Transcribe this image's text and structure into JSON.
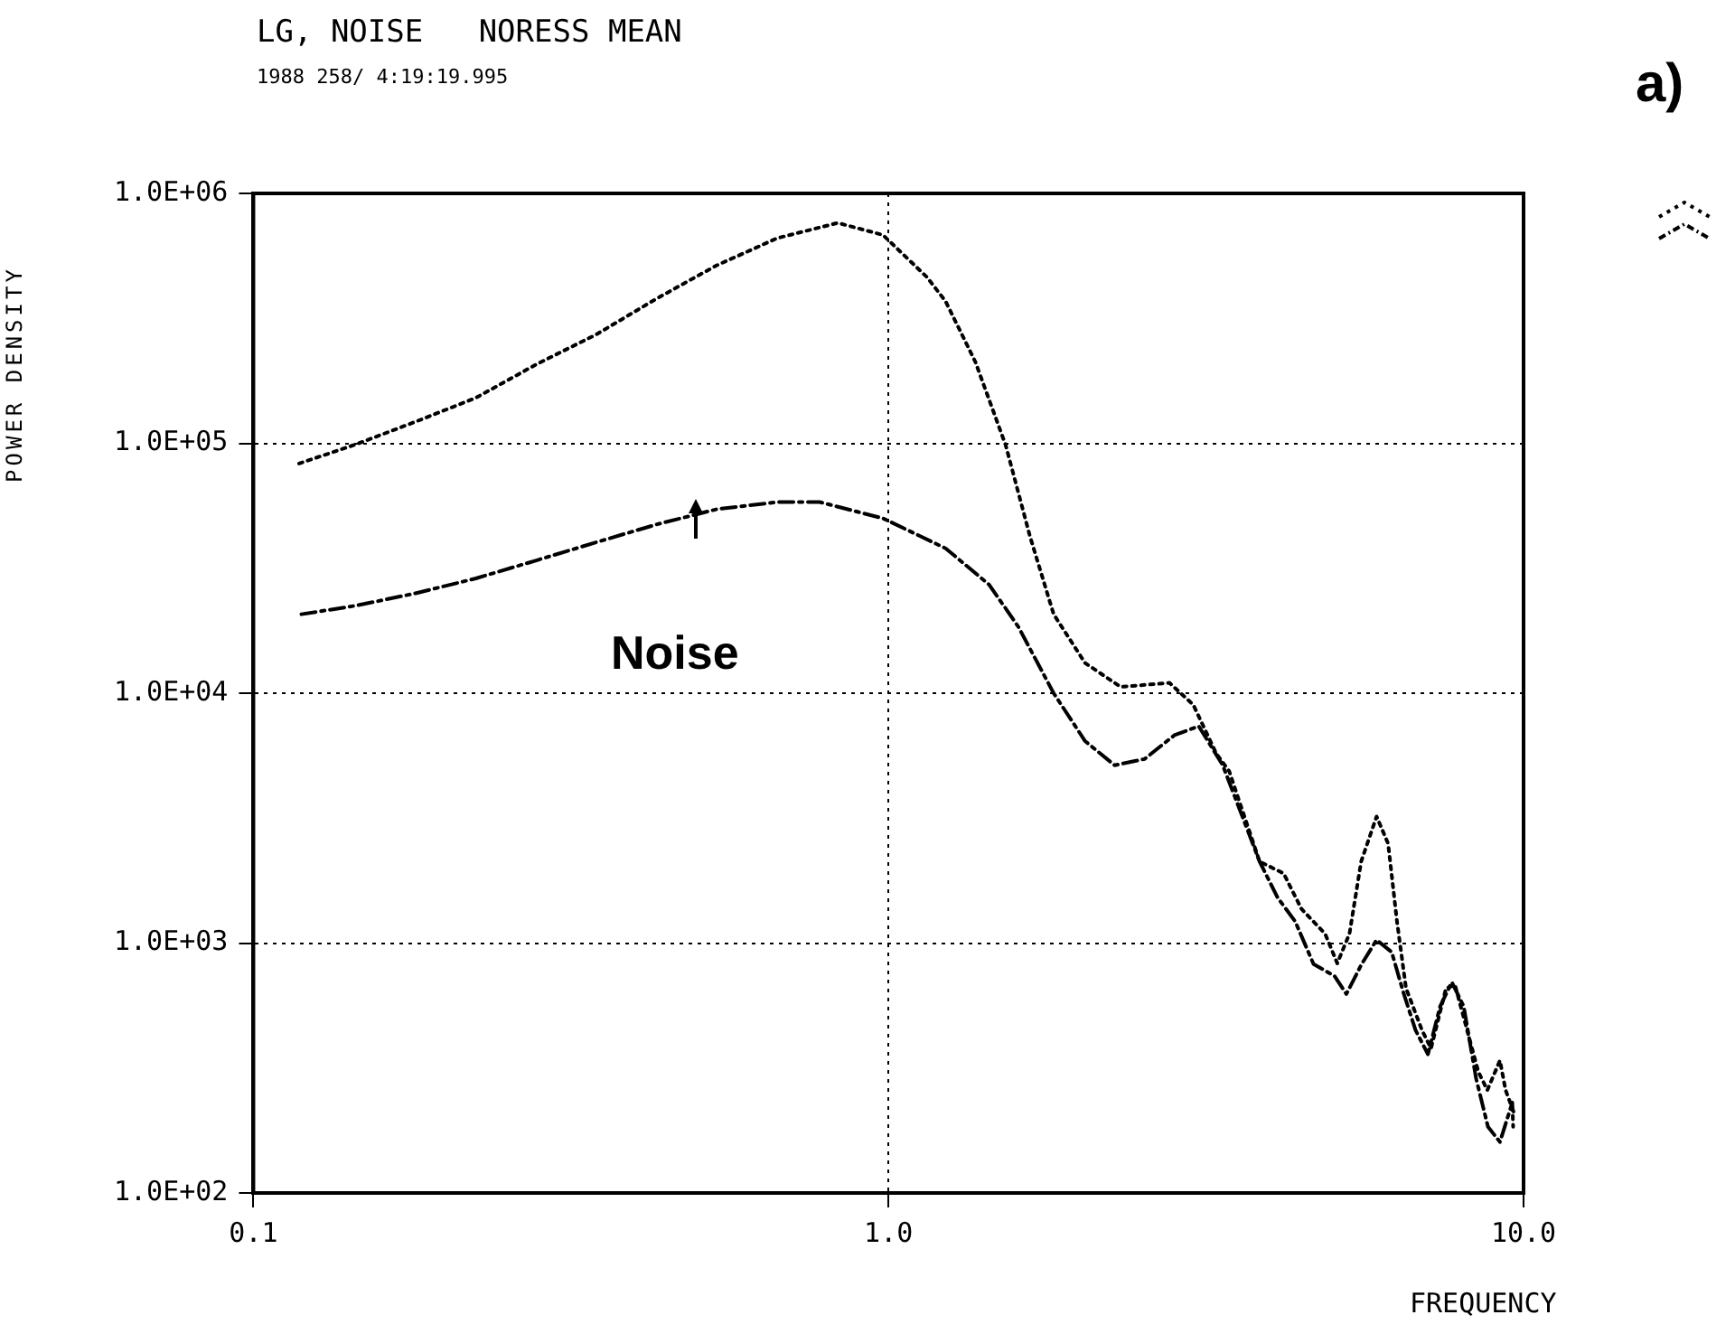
{
  "chart_data": {
    "type": "line",
    "title": "LG, NOISE   NORESS MEAN",
    "subtitle": "1988 258/ 4:19:19.995",
    "xlabel": "FREQUENCY",
    "ylabel": "POWER DENSITY",
    "annotations": [
      "Noise",
      "a)"
    ],
    "log": "xy",
    "grid": true,
    "legend": false,
    "marker": "none",
    "xlim": [
      0.1,
      10
    ],
    "ylim": [
      100,
      1000000
    ],
    "xticks": [
      {
        "value": 0.1,
        "label": "0.1"
      },
      {
        "value": 1,
        "label": "1.0"
      },
      {
        "value": 10,
        "label": "10.0"
      }
    ],
    "yticks": [
      {
        "value": 100,
        "label": "1.0E+02"
      },
      {
        "value": 1000,
        "label": "1.0E+03"
      },
      {
        "value": 10000,
        "label": "1.0E+04"
      },
      {
        "value": 100000,
        "label": "1.0E+05"
      },
      {
        "value": 1000000,
        "label": "1.0E+06"
      }
    ],
    "series": [
      {
        "color": "#000000",
        "line_style": "dotted",
        "x": [
          0.118,
          0.145,
          0.18,
          0.224,
          0.279,
          0.347,
          0.432,
          0.537,
          0.668,
          0.832,
          0.98,
          1.15,
          1.23,
          1.37,
          1.53,
          1.67,
          1.82,
          2.04,
          2.32,
          2.77,
          3.02,
          3.28,
          3.44,
          3.84,
          4.19,
          4.47,
          4.87,
          5.09,
          5.32,
          5.55,
          5.87,
          6.12,
          6.32,
          6.53,
          6.92,
          7.15,
          7.55,
          7.8,
          8.15,
          8.49,
          8.77,
          9.18,
          9.37,
          9.68
        ],
        "values": [
          83000,
          99000,
          122000,
          152000,
          207000,
          273000,
          380000,
          516000,
          662000,
          762000,
          682000,
          462000,
          370000,
          212000,
          98000,
          42500,
          20700,
          13200,
          10600,
          11000,
          8980,
          5750,
          4870,
          2120,
          1900,
          1370,
          1090,
          830,
          1090,
          2120,
          3210,
          2500,
          1220,
          660,
          448,
          379,
          660,
          679,
          448,
          305,
          258,
          339,
          258,
          206
        ]
      },
      {
        "color": "#000000",
        "line_style": "dashed",
        "x": [
          0.119,
          0.145,
          0.18,
          0.224,
          0.279,
          0.347,
          0.432,
          0.537,
          0.668,
          0.779,
          0.98,
          1.23,
          1.44,
          1.6,
          1.82,
          2.04,
          2.27,
          2.53,
          2.82,
          3.08,
          3.36,
          3.84,
          4.1,
          4.37,
          4.67,
          5.04,
          5.26,
          5.56,
          5.87,
          6.2,
          6.48,
          6.76,
          7.07,
          7.39,
          7.71,
          8.05,
          8.42,
          8.79,
          9.18,
          9.6,
          9.63
        ],
        "values": [
          20700,
          22400,
          25100,
          28800,
          34000,
          40200,
          47400,
          54500,
          58200,
          58200,
          50100,
          38000,
          27200,
          18500,
          10000,
          6430,
          5150,
          5450,
          6790,
          7380,
          5150,
          2120,
          1520,
          1220,
          824,
          738,
          625,
          824,
          1030,
          920,
          625,
          448,
          359,
          558,
          698,
          558,
          287,
          184,
          160,
          230,
          184
        ]
      }
    ]
  }
}
